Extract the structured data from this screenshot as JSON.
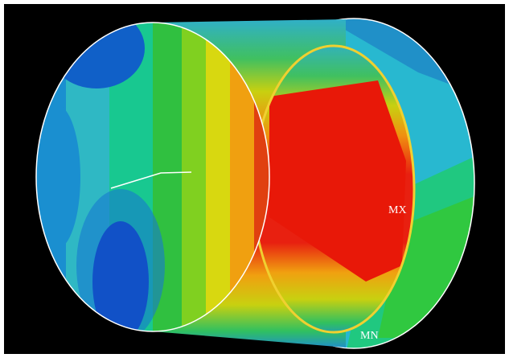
{
  "labels": {
    "max": "MX",
    "min": "MN"
  }
}
